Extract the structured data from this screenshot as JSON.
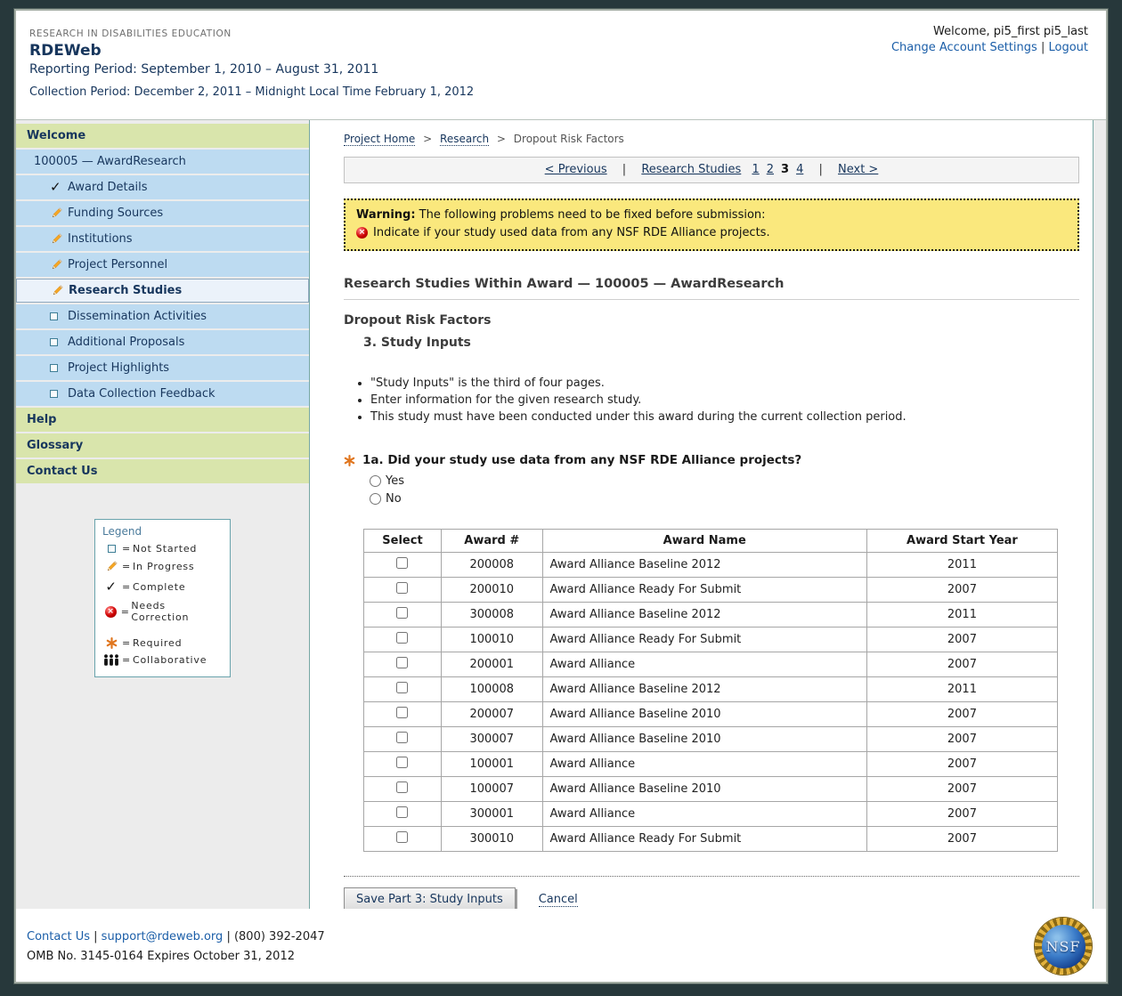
{
  "header": {
    "eyebrow": "RESEARCH IN DISABILITIES EDUCATION",
    "app_title": "RDEWeb",
    "reporting_period": "Reporting Period: September 1, 2010 – August 31, 2011",
    "collection_period": "Collection Period: December 2, 2011 – Midnight Local Time February 1, 2012",
    "welcome": "Welcome, pi5_first pi5_last",
    "account_settings": "Change Account Settings",
    "logout": "Logout",
    "separator": "|"
  },
  "sidebar": {
    "welcome": "Welcome",
    "award": "100005 — AwardResearch",
    "items": [
      {
        "label": "Award Details",
        "icon": "check",
        "selected": false
      },
      {
        "label": "Funding Sources",
        "icon": "pencil",
        "selected": false
      },
      {
        "label": "Institutions",
        "icon": "pencil",
        "selected": false
      },
      {
        "label": "Project Personnel",
        "icon": "pencil",
        "selected": false
      },
      {
        "label": "Research Studies",
        "icon": "pencil",
        "selected": true
      },
      {
        "label": "Dissemination Activities",
        "icon": "square",
        "selected": false
      },
      {
        "label": "Additional Proposals",
        "icon": "square",
        "selected": false
      },
      {
        "label": "Project Highlights",
        "icon": "square",
        "selected": false
      },
      {
        "label": "Data Collection Feedback",
        "icon": "square",
        "selected": false
      }
    ],
    "sections": [
      "Help",
      "Glossary",
      "Contact Us"
    ],
    "legend": {
      "title": "Legend",
      "eq": "=",
      "items": [
        {
          "icon": "square",
          "label": "Not Started",
          "gap_before": false
        },
        {
          "icon": "pencil",
          "label": "In Progress",
          "gap_before": false
        },
        {
          "icon": "check",
          "label": "Complete",
          "gap_before": false
        },
        {
          "icon": "error",
          "label": "Needs Correction",
          "gap_before": false
        },
        {
          "icon": "asterisk",
          "label": "Required",
          "gap_before": true
        },
        {
          "icon": "people",
          "label": "Collaborative",
          "gap_before": false
        }
      ]
    }
  },
  "breadcrumb": {
    "links": [
      "Project Home",
      "Research"
    ],
    "current": "Dropout Risk Factors",
    "separator": ">"
  },
  "pagination": {
    "previous": "< Previous",
    "studies_link": "Research Studies",
    "pages": [
      "1",
      "2",
      "3",
      "4"
    ],
    "current_page": "3",
    "next": "Next >",
    "separator": "|"
  },
  "warning": {
    "label": "Warning:",
    "text": "The following problems need to be fixed before submission:",
    "issue": "Indicate if your study used data from any NSF RDE Alliance projects."
  },
  "main": {
    "section_title": "Research Studies Within Award — 100005 — AwardResearch",
    "study_title": "Dropout Risk Factors",
    "page_title": "3. Study Inputs",
    "bullets": [
      "\"Study Inputs\" is the third of four pages.",
      "Enter information for the given research study.",
      "This study must have been conducted under this award during the current collection period."
    ],
    "question": "1a. Did your study use data from any NSF RDE Alliance projects?",
    "radio_yes": "Yes",
    "radio_no": "No",
    "table": {
      "headers": [
        "Select",
        "Award #",
        "Award Name",
        "Award Start Year"
      ],
      "rows": [
        {
          "award_number": "200008",
          "award_name": "Award Alliance Baseline 2012",
          "start_year": "2011"
        },
        {
          "award_number": "200010",
          "award_name": "Award Alliance Ready For Submit",
          "start_year": "2007"
        },
        {
          "award_number": "300008",
          "award_name": "Award Alliance Baseline 2012",
          "start_year": "2011"
        },
        {
          "award_number": "100010",
          "award_name": "Award Alliance Ready For Submit",
          "start_year": "2007"
        },
        {
          "award_number": "200001",
          "award_name": "Award Alliance",
          "start_year": "2007"
        },
        {
          "award_number": "100008",
          "award_name": "Award Alliance Baseline 2012",
          "start_year": "2011"
        },
        {
          "award_number": "200007",
          "award_name": "Award Alliance Baseline 2010",
          "start_year": "2007"
        },
        {
          "award_number": "300007",
          "award_name": "Award Alliance Baseline 2010",
          "start_year": "2007"
        },
        {
          "award_number": "100001",
          "award_name": "Award Alliance",
          "start_year": "2007"
        },
        {
          "award_number": "100007",
          "award_name": "Award Alliance Baseline 2010",
          "start_year": "2007"
        },
        {
          "award_number": "300001",
          "award_name": "Award Alliance",
          "start_year": "2007"
        },
        {
          "award_number": "300010",
          "award_name": "Award Alliance Ready For Submit",
          "start_year": "2007"
        }
      ]
    },
    "save_button": "Save Part 3: Study Inputs",
    "cancel_link": "Cancel"
  },
  "footer": {
    "contact_link": "Contact Us",
    "email_link": "support@rdeweb.org",
    "phone": "(800) 392-2047",
    "omb": "OMB No. 3145-0164 Expires October 31, 2012",
    "nsf_logo_text": "NSF",
    "separator": "|"
  },
  "colors": {
    "accent_green": "#D9E5AC",
    "accent_blue": "#BDDBF1",
    "selected_item": "#EBF2FA",
    "warning_bg": "#FAE87D",
    "link_blue": "#1B5EA8",
    "navy_text": "#17365D",
    "teal_border": "#76A7A3",
    "required_orange": "#E0761F",
    "error_red": "#CC0000"
  }
}
